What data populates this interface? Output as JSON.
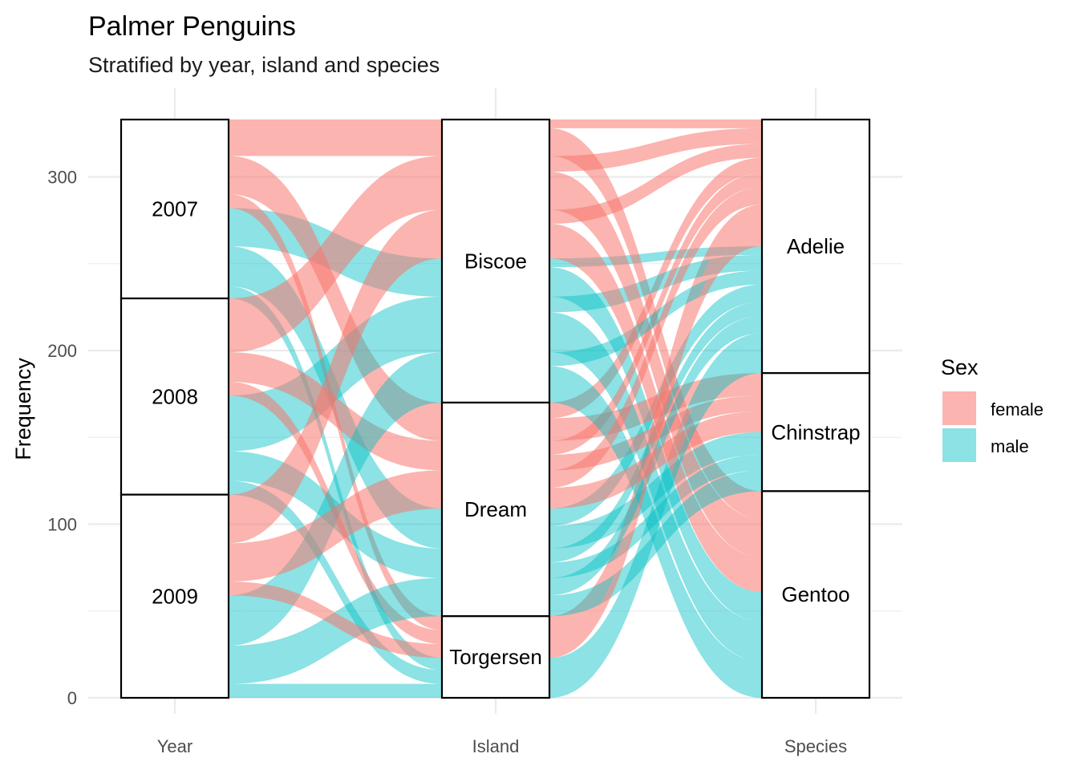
{
  "chart_data": {
    "type": "alluvial",
    "title": "Palmer Penguins",
    "subtitle": "Stratified by year, island and species",
    "ylabel": "Frequency",
    "ylim": [
      0,
      333
    ],
    "yticks": [
      0,
      100,
      200,
      300
    ],
    "axes": [
      "Year",
      "Island",
      "Species"
    ],
    "grid": true,
    "legend": {
      "title": "Sex",
      "placement": "right",
      "entries": [
        {
          "label": "female",
          "color": "#F8766D"
        },
        {
          "label": "male",
          "color": "#00BFC4"
        }
      ]
    },
    "strata": [
      [
        "2007",
        "2008",
        "2009"
      ],
      [
        "Biscoe",
        "Dream",
        "Torgersen"
      ],
      [
        "Adelie",
        "Chinstrap",
        "Gentoo"
      ]
    ],
    "flows": [
      {
        "year": "2007",
        "island": "Biscoe",
        "species": "Adelie",
        "sex": "female",
        "count": 5
      },
      {
        "year": "2007",
        "island": "Biscoe",
        "species": "Adelie",
        "sex": "male",
        "count": 5
      },
      {
        "year": "2007",
        "island": "Biscoe",
        "species": "Gentoo",
        "sex": "female",
        "count": 16
      },
      {
        "year": "2007",
        "island": "Biscoe",
        "species": "Gentoo",
        "sex": "male",
        "count": 17
      },
      {
        "year": "2007",
        "island": "Dream",
        "species": "Adelie",
        "sex": "female",
        "count": 9
      },
      {
        "year": "2007",
        "island": "Dream",
        "species": "Adelie",
        "sex": "male",
        "count": 10
      },
      {
        "year": "2007",
        "island": "Dream",
        "species": "Chinstrap",
        "sex": "female",
        "count": 13
      },
      {
        "year": "2007",
        "island": "Dream",
        "species": "Chinstrap",
        "sex": "male",
        "count": 13
      },
      {
        "year": "2007",
        "island": "Torgersen",
        "species": "Adelie",
        "sex": "female",
        "count": 8
      },
      {
        "year": "2007",
        "island": "Torgersen",
        "species": "Adelie",
        "sex": "male",
        "count": 7
      },
      {
        "year": "2008",
        "island": "Biscoe",
        "species": "Adelie",
        "sex": "female",
        "count": 9
      },
      {
        "year": "2008",
        "island": "Biscoe",
        "species": "Adelie",
        "sex": "male",
        "count": 9
      },
      {
        "year": "2008",
        "island": "Biscoe",
        "species": "Gentoo",
        "sex": "female",
        "count": 22
      },
      {
        "year": "2008",
        "island": "Biscoe",
        "species": "Gentoo",
        "sex": "male",
        "count": 23
      },
      {
        "year": "2008",
        "island": "Dream",
        "species": "Adelie",
        "sex": "female",
        "count": 8
      },
      {
        "year": "2008",
        "island": "Dream",
        "species": "Adelie",
        "sex": "male",
        "count": 8
      },
      {
        "year": "2008",
        "island": "Dream",
        "species": "Chinstrap",
        "sex": "female",
        "count": 9
      },
      {
        "year": "2008",
        "island": "Dream",
        "species": "Chinstrap",
        "sex": "male",
        "count": 9
      },
      {
        "year": "2008",
        "island": "Torgersen",
        "species": "Adelie",
        "sex": "female",
        "count": 8
      },
      {
        "year": "2008",
        "island": "Torgersen",
        "species": "Adelie",
        "sex": "male",
        "count": 8
      },
      {
        "year": "2009",
        "island": "Biscoe",
        "species": "Adelie",
        "sex": "female",
        "count": 8
      },
      {
        "year": "2009",
        "island": "Biscoe",
        "species": "Adelie",
        "sex": "male",
        "count": 8
      },
      {
        "year": "2009",
        "island": "Biscoe",
        "species": "Gentoo",
        "sex": "female",
        "count": 20
      },
      {
        "year": "2009",
        "island": "Biscoe",
        "species": "Gentoo",
        "sex": "male",
        "count": 21
      },
      {
        "year": "2009",
        "island": "Dream",
        "species": "Adelie",
        "sex": "female",
        "count": 10
      },
      {
        "year": "2009",
        "island": "Dream",
        "species": "Adelie",
        "sex": "male",
        "count": 10
      },
      {
        "year": "2009",
        "island": "Dream",
        "species": "Chinstrap",
        "sex": "female",
        "count": 12
      },
      {
        "year": "2009",
        "island": "Dream",
        "species": "Chinstrap",
        "sex": "male",
        "count": 12
      },
      {
        "year": "2009",
        "island": "Torgersen",
        "species": "Adelie",
        "sex": "female",
        "count": 8
      },
      {
        "year": "2009",
        "island": "Torgersen",
        "species": "Adelie",
        "sex": "male",
        "count": 8
      }
    ]
  }
}
